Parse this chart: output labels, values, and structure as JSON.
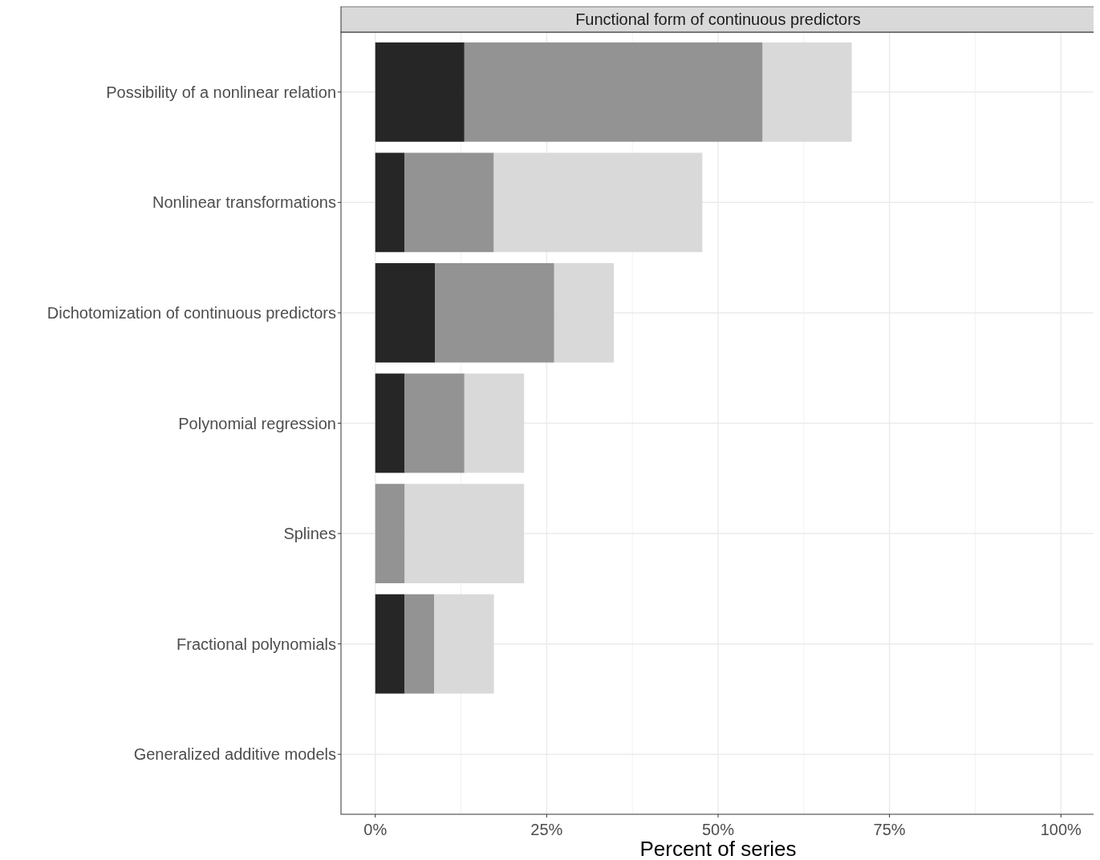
{
  "chart_data": {
    "type": "bar",
    "orientation": "horizontal",
    "stacked": true,
    "title": "Functional form of continuous predictors",
    "xlabel": "Percent of series",
    "categories": [
      "Possibility of a nonlinear relation",
      "Nonlinear transformations",
      "Dichotomization of continuous predictors",
      "Polynomial regression",
      "Splines",
      "Fractional polynomials",
      "Generalized additive models"
    ],
    "series": [
      {
        "color": "#262626",
        "values": [
          13.0,
          4.3,
          8.7,
          4.3,
          0,
          4.3,
          0
        ]
      },
      {
        "color": "#939393",
        "values": [
          43.5,
          13.0,
          17.4,
          8.7,
          4.3,
          4.3,
          0
        ]
      },
      {
        "color": "#d9d9d9",
        "values": [
          13.0,
          30.4,
          8.7,
          8.7,
          17.4,
          8.7,
          0
        ]
      }
    ],
    "xlim": [
      -5,
      105
    ],
    "xticks": [
      {
        "value": 0,
        "label": "0%"
      },
      {
        "value": 25,
        "label": "25%"
      },
      {
        "value": 50,
        "label": "50%"
      },
      {
        "value": 75,
        "label": "75%"
      },
      {
        "value": 100,
        "label": "100%"
      }
    ],
    "grid": true
  }
}
